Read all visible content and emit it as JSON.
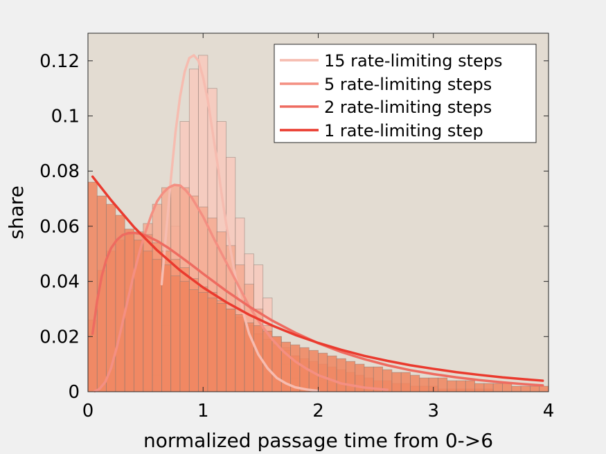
{
  "chart_data": {
    "type": "bar",
    "title": "",
    "xlabel": "normalized passage time from 0->6",
    "ylabel": "share",
    "xlim": [
      0,
      4
    ],
    "ylim": [
      0,
      0.13
    ],
    "xticks": [
      0,
      1,
      2,
      3,
      4
    ],
    "xtick_labels": [
      "0",
      "1",
      "2",
      "3",
      "4"
    ],
    "yticks": [
      0,
      0.02,
      0.04,
      0.06,
      0.08,
      0.1,
      0.12
    ],
    "ytick_labels": [
      "0",
      "0.02",
      "0.04",
      "0.06",
      "0.08",
      "0.1",
      "0.12"
    ],
    "grid": false,
    "legend_position": "top-right",
    "plot_background": "#e3dcd2",
    "bin_width": 0.08,
    "bin_left_edges": [
      0,
      0.08,
      0.16,
      0.24,
      0.32,
      0.4,
      0.48,
      0.56,
      0.64,
      0.72,
      0.8,
      0.88,
      0.96,
      1.04,
      1.12,
      1.2,
      1.28,
      1.36,
      1.44,
      1.52,
      1.6,
      1.68,
      1.76,
      1.84,
      1.92,
      2.0,
      2.08,
      2.16,
      2.24,
      2.32,
      2.4,
      2.48,
      2.56,
      2.64,
      2.72,
      2.8,
      2.88,
      2.96,
      3.04,
      3.12,
      3.2,
      3.28,
      3.36,
      3.44,
      3.52,
      3.6,
      3.68,
      3.76,
      3.84,
      3.92
    ],
    "histograms": [
      {
        "series_index": 0,
        "color": "#f8c9bd",
        "alpha": 0.85,
        "values": [
          0,
          0,
          0,
          0,
          0,
          0,
          0.001,
          0.006,
          0.024,
          0.06,
          0.098,
          0.117,
          0.122,
          0.11,
          0.098,
          0.085,
          0.063,
          0.05,
          0.046,
          0.034,
          0.019,
          0.01,
          0.005,
          0.002,
          0.001,
          0,
          0,
          0,
          0,
          0,
          0,
          0,
          0,
          0,
          0,
          0,
          0,
          0,
          0,
          0,
          0,
          0,
          0,
          0,
          0,
          0,
          0,
          0,
          0,
          0
        ]
      },
      {
        "series_index": 1,
        "color": "#f5a98f",
        "alpha": 0.8,
        "values": [
          0,
          0.002,
          0.008,
          0.021,
          0.037,
          0.05,
          0.061,
          0.068,
          0.074,
          0.075,
          0.074,
          0.071,
          0.067,
          0.063,
          0.058,
          0.053,
          0.046,
          0.039,
          0.03,
          0.024,
          0.02,
          0.016,
          0.013,
          0.009,
          0.006,
          0.004,
          0.003,
          0.002,
          0.001,
          0.001,
          0,
          0,
          0,
          0,
          0,
          0,
          0,
          0,
          0,
          0,
          0,
          0,
          0,
          0,
          0,
          0,
          0,
          0,
          0,
          0
        ]
      },
      {
        "series_index": 2,
        "color": "#f4906e",
        "alpha": 0.75,
        "values": [
          0.026,
          0.044,
          0.051,
          0.055,
          0.057,
          0.058,
          0.057,
          0.054,
          0.051,
          0.048,
          0.045,
          0.041,
          0.038,
          0.036,
          0.033,
          0.03,
          0.027,
          0.024,
          0.021,
          0.019,
          0.017,
          0.015,
          0.013,
          0.012,
          0.011,
          0.01,
          0.009,
          0.008,
          0.007,
          0.006,
          0.005,
          0.004,
          0.004,
          0.003,
          0.003,
          0.002,
          0.002,
          0.002,
          0.001,
          0.001,
          0.001,
          0.001,
          0.001,
          0.001,
          0,
          0,
          0,
          0,
          0,
          0
        ]
      },
      {
        "series_index": 3,
        "color": "#f0855f",
        "alpha": 0.85,
        "values": [
          0.076,
          0.071,
          0.068,
          0.064,
          0.059,
          0.055,
          0.051,
          0.048,
          0.046,
          0.042,
          0.04,
          0.037,
          0.036,
          0.034,
          0.032,
          0.03,
          0.028,
          0.025,
          0.024,
          0.022,
          0.02,
          0.018,
          0.017,
          0.016,
          0.015,
          0.014,
          0.013,
          0.012,
          0.011,
          0.01,
          0.009,
          0.009,
          0.008,
          0.007,
          0.007,
          0.006,
          0.005,
          0.005,
          0.005,
          0.004,
          0.004,
          0.004,
          0.003,
          0.003,
          0.003,
          0.003,
          0.002,
          0.002,
          0.002,
          0.002
        ]
      }
    ],
    "series": [
      {
        "name": "15 rate-limiting steps",
        "color": "#f6bcb0",
        "x": [
          0.64,
          0.68,
          0.72,
          0.76,
          0.8,
          0.84,
          0.88,
          0.92,
          0.96,
          1.0,
          1.04,
          1.08,
          1.12,
          1.16,
          1.2,
          1.24,
          1.28,
          1.32,
          1.36,
          1.4,
          1.48,
          1.56,
          1.64,
          1.72,
          1.8,
          1.9,
          2.0
        ],
        "y": [
          0.039,
          0.058,
          0.077,
          0.094,
          0.107,
          0.116,
          0.121,
          0.122,
          0.12,
          0.114,
          0.106,
          0.095,
          0.084,
          0.072,
          0.061,
          0.051,
          0.042,
          0.034,
          0.027,
          0.021,
          0.0135,
          0.0085,
          0.005,
          0.003,
          0.0016,
          0.0008,
          0.0003
        ]
      },
      {
        "name": "5 rate-limiting steps",
        "color": "#f48f82",
        "x": [
          0.06,
          0.1,
          0.15,
          0.2,
          0.25,
          0.3,
          0.35,
          0.4,
          0.45,
          0.5,
          0.55,
          0.6,
          0.65,
          0.7,
          0.75,
          0.8,
          0.85,
          0.9,
          0.95,
          1.0,
          1.1,
          1.2,
          1.3,
          1.4,
          1.5,
          1.6,
          1.7,
          1.8,
          1.9,
          2.0,
          2.2,
          2.4,
          2.6
        ],
        "y": [
          0.0002,
          0.001,
          0.0035,
          0.0085,
          0.016,
          0.025,
          0.034,
          0.043,
          0.051,
          0.058,
          0.064,
          0.069,
          0.072,
          0.074,
          0.075,
          0.0748,
          0.073,
          0.0705,
          0.067,
          0.0635,
          0.055,
          0.047,
          0.039,
          0.031,
          0.0245,
          0.019,
          0.0145,
          0.011,
          0.0083,
          0.006,
          0.003,
          0.0015,
          0.0007
        ]
      },
      {
        "name": "2 rate-limiting steps",
        "color": "#ee6b60",
        "x": [
          0.04,
          0.08,
          0.12,
          0.16,
          0.2,
          0.25,
          0.3,
          0.35,
          0.4,
          0.45,
          0.5,
          0.6,
          0.7,
          0.8,
          0.9,
          1.0,
          1.2,
          1.4,
          1.6,
          1.8,
          2.0,
          2.2,
          2.4,
          2.6,
          2.8,
          3.0,
          3.2,
          3.4,
          3.6,
          3.8,
          3.95
        ],
        "y": [
          0.021,
          0.033,
          0.042,
          0.048,
          0.052,
          0.055,
          0.0568,
          0.0575,
          0.0576,
          0.0573,
          0.0567,
          0.0547,
          0.0521,
          0.0491,
          0.046,
          0.0428,
          0.0366,
          0.0309,
          0.0258,
          0.0214,
          0.0176,
          0.0144,
          0.0118,
          0.0096,
          0.0078,
          0.0064,
          0.0052,
          0.0042,
          0.0034,
          0.0027,
          0.0023
        ]
      },
      {
        "name": "1 rate-limiting step",
        "color": "#ea3a2e",
        "x": [
          0.04,
          0.2,
          0.4,
          0.6,
          0.8,
          1.0,
          1.2,
          1.4,
          1.6,
          1.8,
          2.0,
          2.2,
          2.4,
          2.6,
          2.8,
          3.0,
          3.2,
          3.4,
          3.6,
          3.8,
          3.95
        ],
        "y": [
          0.078,
          0.0695,
          0.0597,
          0.0513,
          0.044,
          0.0378,
          0.0325,
          0.0279,
          0.024,
          0.0206,
          0.0177,
          0.0152,
          0.013,
          0.0112,
          0.0096,
          0.0083,
          0.0071,
          0.0061,
          0.0052,
          0.0045,
          0.004
        ]
      }
    ]
  }
}
